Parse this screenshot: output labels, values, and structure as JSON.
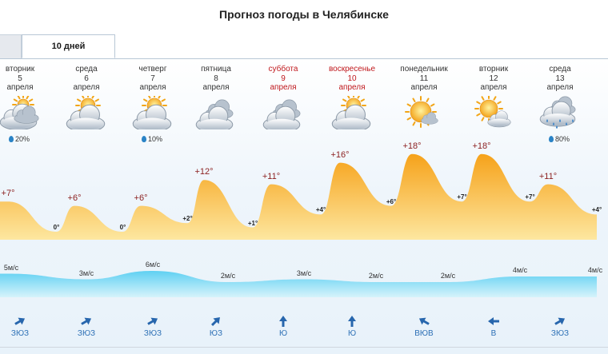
{
  "page": {
    "title": "Прогноз погоды в Челябинске"
  },
  "tabs": [
    {
      "label": "10 дней"
    }
  ],
  "days": [
    {
      "weekday": "вторник",
      "date": "5",
      "month": "апреля",
      "weekend": false,
      "icon": "cloudy-sun-icon",
      "precip": "20%",
      "temp_day": "+7°",
      "temp_night": "0°",
      "wind_speed": "5м/с",
      "wind_dir": "ЗЮЗ"
    },
    {
      "weekday": "среда",
      "date": "6",
      "month": "апреля",
      "weekend": false,
      "icon": "partly-cloudy-icon",
      "precip": "",
      "temp_day": "+6°",
      "temp_night": "0°",
      "wind_speed": "3м/с",
      "wind_dir": "ЗЮЗ"
    },
    {
      "weekday": "четверг",
      "date": "7",
      "month": "апреля",
      "weekend": false,
      "icon": "partly-cloudy-icon",
      "precip": "10%",
      "temp_day": "+6°",
      "temp_night": "+2°",
      "wind_speed": "6м/с",
      "wind_dir": "ЗЮЗ"
    },
    {
      "weekday": "пятница",
      "date": "8",
      "month": "апреля",
      "weekend": false,
      "icon": "cloudy-icon",
      "precip": "",
      "temp_day": "+12°",
      "temp_night": "+1°",
      "wind_speed": "2м/с",
      "wind_dir": "ЮЗ"
    },
    {
      "weekday": "суббота",
      "date": "9",
      "month": "апреля",
      "weekend": true,
      "icon": "cloudy-icon",
      "precip": "",
      "temp_day": "+11°",
      "temp_night": "+4°",
      "wind_speed": "3м/с",
      "wind_dir": "Ю"
    },
    {
      "weekday": "воскресенье",
      "date": "10",
      "month": "апреля",
      "weekend": true,
      "icon": "partly-cloudy-icon",
      "precip": "",
      "temp_day": "+16°",
      "temp_night": "+6°",
      "wind_speed": "2м/с",
      "wind_dir": "Ю"
    },
    {
      "weekday": "понедельник",
      "date": "11",
      "month": "апреля",
      "weekend": false,
      "icon": "sunny-icon",
      "precip": "",
      "temp_day": "+18°",
      "temp_night": "+7°",
      "wind_speed": "2м/с",
      "wind_dir": "ВЮВ"
    },
    {
      "weekday": "вторник",
      "date": "12",
      "month": "апреля",
      "weekend": false,
      "icon": "mostly-sunny-icon",
      "precip": "",
      "temp_day": "+18°",
      "temp_night": "+7°",
      "wind_speed": "4м/с",
      "wind_dir": "В"
    },
    {
      "weekday": "среда",
      "date": "13",
      "month": "апреля",
      "weekend": false,
      "icon": "rain-icon",
      "precip": "80%",
      "temp_day": "+11°",
      "temp_night": "+4°",
      "wind_speed": "4м/с",
      "wind_dir": "ЗЮЗ"
    }
  ],
  "chart_data": [
    {
      "type": "area",
      "series": [
        {
          "name": "",
          "values": [
            7,
            0,
            6,
            0,
            6,
            2,
            12,
            1,
            11,
            4,
            16,
            6,
            18,
            7,
            18,
            7,
            11,
            4
          ]
        }
      ],
      "value_labels": [
        "+7°",
        "0°",
        "+6°",
        "0°",
        "+6°",
        "+2°",
        "+12°",
        "+1°",
        "+11°",
        "+4°",
        "+16°",
        "+6°",
        "+18°",
        "+7°",
        "+18°",
        "+7°",
        "+11°",
        "+4°"
      ],
      "unit": "°C",
      "colors": {
        "fill_top": "#f6a21a",
        "fill_bottom": "#fde7a0"
      }
    },
    {
      "type": "area",
      "series": [
        {
          "name": "",
          "values": [
            5,
            3,
            6,
            2,
            3,
            2,
            2,
            4,
            4
          ]
        }
      ],
      "value_labels": [
        "5м/с",
        "3м/с",
        "6м/с",
        "2м/с",
        "3м/с",
        "2м/с",
        "2м/с",
        "4м/с",
        "4м/с"
      ],
      "unit": "м/с",
      "colors": {
        "fill_top": "#5fd0f2",
        "fill_bottom": "#d6f3fb"
      }
    }
  ],
  "colors": {
    "weekend": "#c0191d",
    "temp_text": "#8b1f1f",
    "wind_dir_text": "#2c6fb5"
  }
}
